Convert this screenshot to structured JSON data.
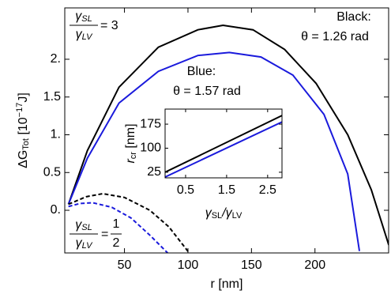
{
  "chart_data": [
    {
      "type": "line",
      "xlabel": {
        "main": "r [nm]"
      },
      "ylabel": {
        "main": "ΔG",
        "sub": "Tot",
        "pre": " [10",
        "sup": "−17",
        "post": "J]"
      },
      "xlim": [
        3,
        258
      ],
      "ylim": [
        -0.565,
        2.68
      ],
      "xticks": [
        50,
        100,
        150,
        200
      ],
      "yticks": [
        {
          "value": 0,
          "label": "0."
        },
        0.5,
        {
          "value": 1,
          "label": "1."
        },
        1.5,
        {
          "value": 2,
          "label": "2."
        }
      ],
      "series": [
        {
          "color": "#000000",
          "dash": false,
          "x": [
            5.9,
            20.8,
            45.7,
            76.7,
            107.8,
            127.6,
            151.2,
            176.1,
            200.9,
            225.8,
            244.4,
            258.1
          ],
          "values": [
            0.08,
            0.79,
            1.63,
            2.16,
            2.39,
            2.45,
            2.39,
            2.13,
            1.68,
            1.0,
            0.27,
            -0.46
          ]
        },
        {
          "color": "#1a1adc",
          "dash": false,
          "x": [
            5.9,
            20.8,
            45.7,
            76.7,
            107.8,
            132.6,
            157.5,
            182.6,
            207.1,
            225.8,
            235
          ],
          "values": [
            0.08,
            0.69,
            1.42,
            1.84,
            2.05,
            2.09,
            2.03,
            1.79,
            1.27,
            0.48,
            -0.54
          ]
        },
        {
          "color": "#000000",
          "dash": true,
          "x": [
            5.9,
            20,
            33,
            50,
            70,
            85,
            101
          ],
          "values": [
            0.08,
            0.18,
            0.22,
            0.17,
            0.0,
            -0.22,
            -0.565
          ]
        },
        {
          "color": "#1a1adc",
          "dash": true,
          "x": [
            5.9,
            15,
            25,
            40,
            55,
            70,
            84
          ],
          "values": [
            0.05,
            0.09,
            0.1,
            0.04,
            -0.1,
            -0.33,
            -0.565
          ]
        }
      ],
      "annotations": [
        {
          "num": [
            "γ",
            "SL"
          ],
          "den": [
            "γ",
            "LV"
          ],
          "rhs": "= 3"
        },
        {
          "line1": "Black:",
          "line2": "θ = 1.26 rad",
          "color": "#000000"
        },
        {
          "line1": "Blue:",
          "line2": "θ = 1.57 rad",
          "color": "#1a1adc"
        },
        {
          "num": [
            "γ",
            "SL"
          ],
          "den": [
            "γ",
            "LV"
          ],
          "rhs": "=",
          "rnum": "1",
          "rden": "2"
        }
      ]
    },
    {
      "type": "line",
      "xlabel": {
        "main": "γ",
        "sub": "SL",
        "pre": "/γ",
        "sub2": "LV"
      },
      "ylabel": {
        "main": "r",
        "sub": "cr",
        "post": " [nm]"
      },
      "xlim": [
        0,
        2.85
      ],
      "ylim": [
        7.5,
        222
      ],
      "xticks": [
        0.5,
        1.5,
        2.5
      ],
      "yticks": [
        25,
        100,
        175
      ],
      "series": [
        {
          "color": "#000000",
          "dash": false,
          "x": [
            0,
            2.85
          ],
          "values": [
            25,
            202
          ]
        },
        {
          "color": "#1a1adc",
          "dash": false,
          "x": [
            0,
            2.85
          ],
          "values": [
            10,
            182
          ]
        }
      ]
    }
  ]
}
